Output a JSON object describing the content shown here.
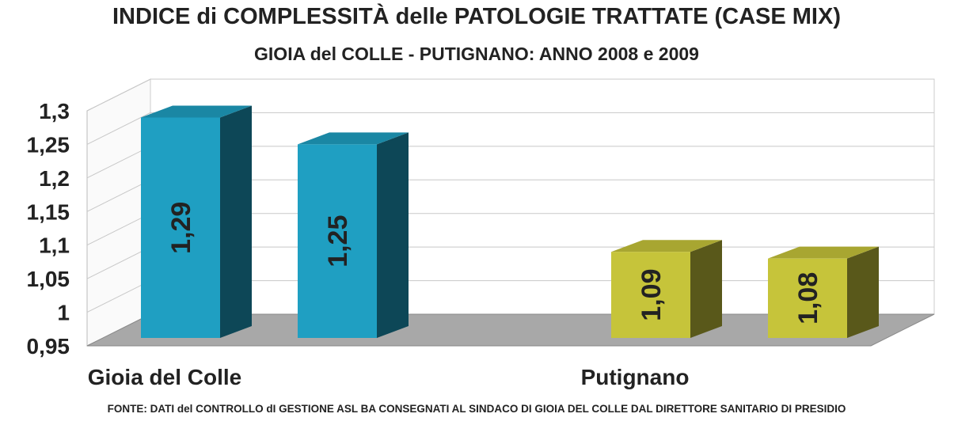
{
  "chart_data": {
    "type": "bar3d",
    "title": "INDICE di COMPLESSITÀ delle PATOLOGIE TRATTATE (CASE MIX)",
    "subtitle": "GIOIA del COLLE - PUTIGNANO: ANNO 2008 e 2009",
    "categories": [
      "Gioia del Colle",
      "Putignano"
    ],
    "category_colors": [
      "#1f9fc2",
      "#c6c43a"
    ],
    "series": [
      {
        "values": [
          1.29,
          1.09
        ],
        "value_labels": [
          "1,29",
          "1,09"
        ]
      },
      {
        "values": [
          1.25,
          1.08
        ],
        "value_labels": [
          "1,25",
          "1,08"
        ]
      }
    ],
    "ylim": [
      0.95,
      1.3
    ],
    "yticks": [
      {
        "value": 0.95,
        "label": "0,95"
      },
      {
        "value": 1,
        "label": "1"
      },
      {
        "value": 1.05,
        "label": "1,05"
      },
      {
        "value": 1.1,
        "label": "1,1"
      },
      {
        "value": 1.15,
        "label": "1,15"
      },
      {
        "value": 1.2,
        "label": "1,2"
      },
      {
        "value": 1.25,
        "label": "1,25"
      },
      {
        "value": 1.3,
        "label": "1,3"
      }
    ],
    "grid": true,
    "source": "FONTE: DATI del CONTROLLO dI GESTIONE ASL BA CONSEGNATI AL SINDACO DI GIOIA DEL COLLE DAL DIRETTORE SANITARIO DI PRESIDIO"
  }
}
